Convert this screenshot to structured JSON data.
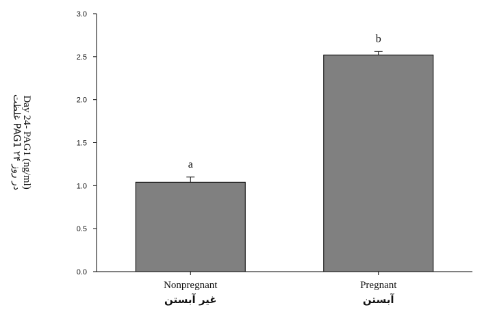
{
  "chart_data": {
    "type": "bar",
    "categories": [
      "Nonpregnant",
      "Pregnant"
    ],
    "categories_fa": [
      "غیر آبستن",
      "آبستن"
    ],
    "values": [
      1.04,
      2.52
    ],
    "errors": [
      0.06,
      0.04
    ],
    "significance": [
      "a",
      "b"
    ],
    "ylabel": "Day 24- PAG1 (ng/ml)",
    "ylabel_fa": "غلظت PAG1 در روز ۲۴",
    "ylim": [
      0,
      3.0
    ],
    "yticks": [
      "0.0",
      "0.5",
      "1.0",
      "1.5",
      "2.0",
      "2.5",
      "3.0"
    ],
    "bar_color": "#808080",
    "grid": false
  }
}
